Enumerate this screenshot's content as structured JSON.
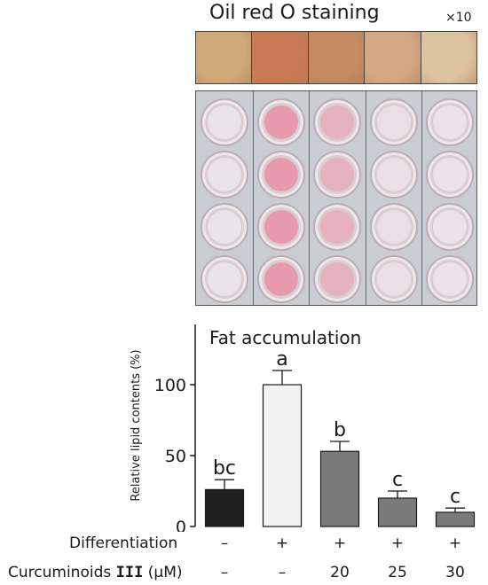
{
  "figure": {
    "top_title": "Oil red O staining",
    "magnification": "×10",
    "strip_colors": [
      "#cfa978",
      "#c97b55",
      "#c48a60",
      "#d2a781",
      "#dcc3a0"
    ],
    "well_colors": [
      "#e9e4e9",
      "#e79aab",
      "#e6b1bf",
      "#ebdfe6",
      "#ebe3ea"
    ]
  },
  "chart_data": {
    "type": "bar",
    "title": "Fat accumulation",
    "ylabel": "Relative lipid contents (%)",
    "ylim": [
      0,
      130
    ],
    "yticks": [
      0,
      50,
      100
    ],
    "grid": false,
    "categories": [
      "1",
      "2",
      "3",
      "4",
      "5"
    ],
    "values": [
      26,
      100,
      53,
      20,
      10
    ],
    "errors": [
      7,
      10,
      7,
      5,
      3
    ],
    "letters": [
      "bc",
      "a",
      "b",
      "c",
      "c"
    ],
    "bar_colors": [
      "#1f1f1f",
      "#f2f2f2",
      "#7a7a7a",
      "#7a7a7a",
      "#7a7a7a"
    ]
  },
  "conditions": {
    "differentiation_label": "Differentiation",
    "differentiation": [
      "–",
      "+",
      "+",
      "+",
      "+"
    ],
    "curcuminoids_label": "Curcuminoids",
    "curcuminoids_number": "III",
    "curcuminoids_unit": " (μM)",
    "curcuminoids": [
      "–",
      "–",
      "20",
      "25",
      "30"
    ]
  }
}
